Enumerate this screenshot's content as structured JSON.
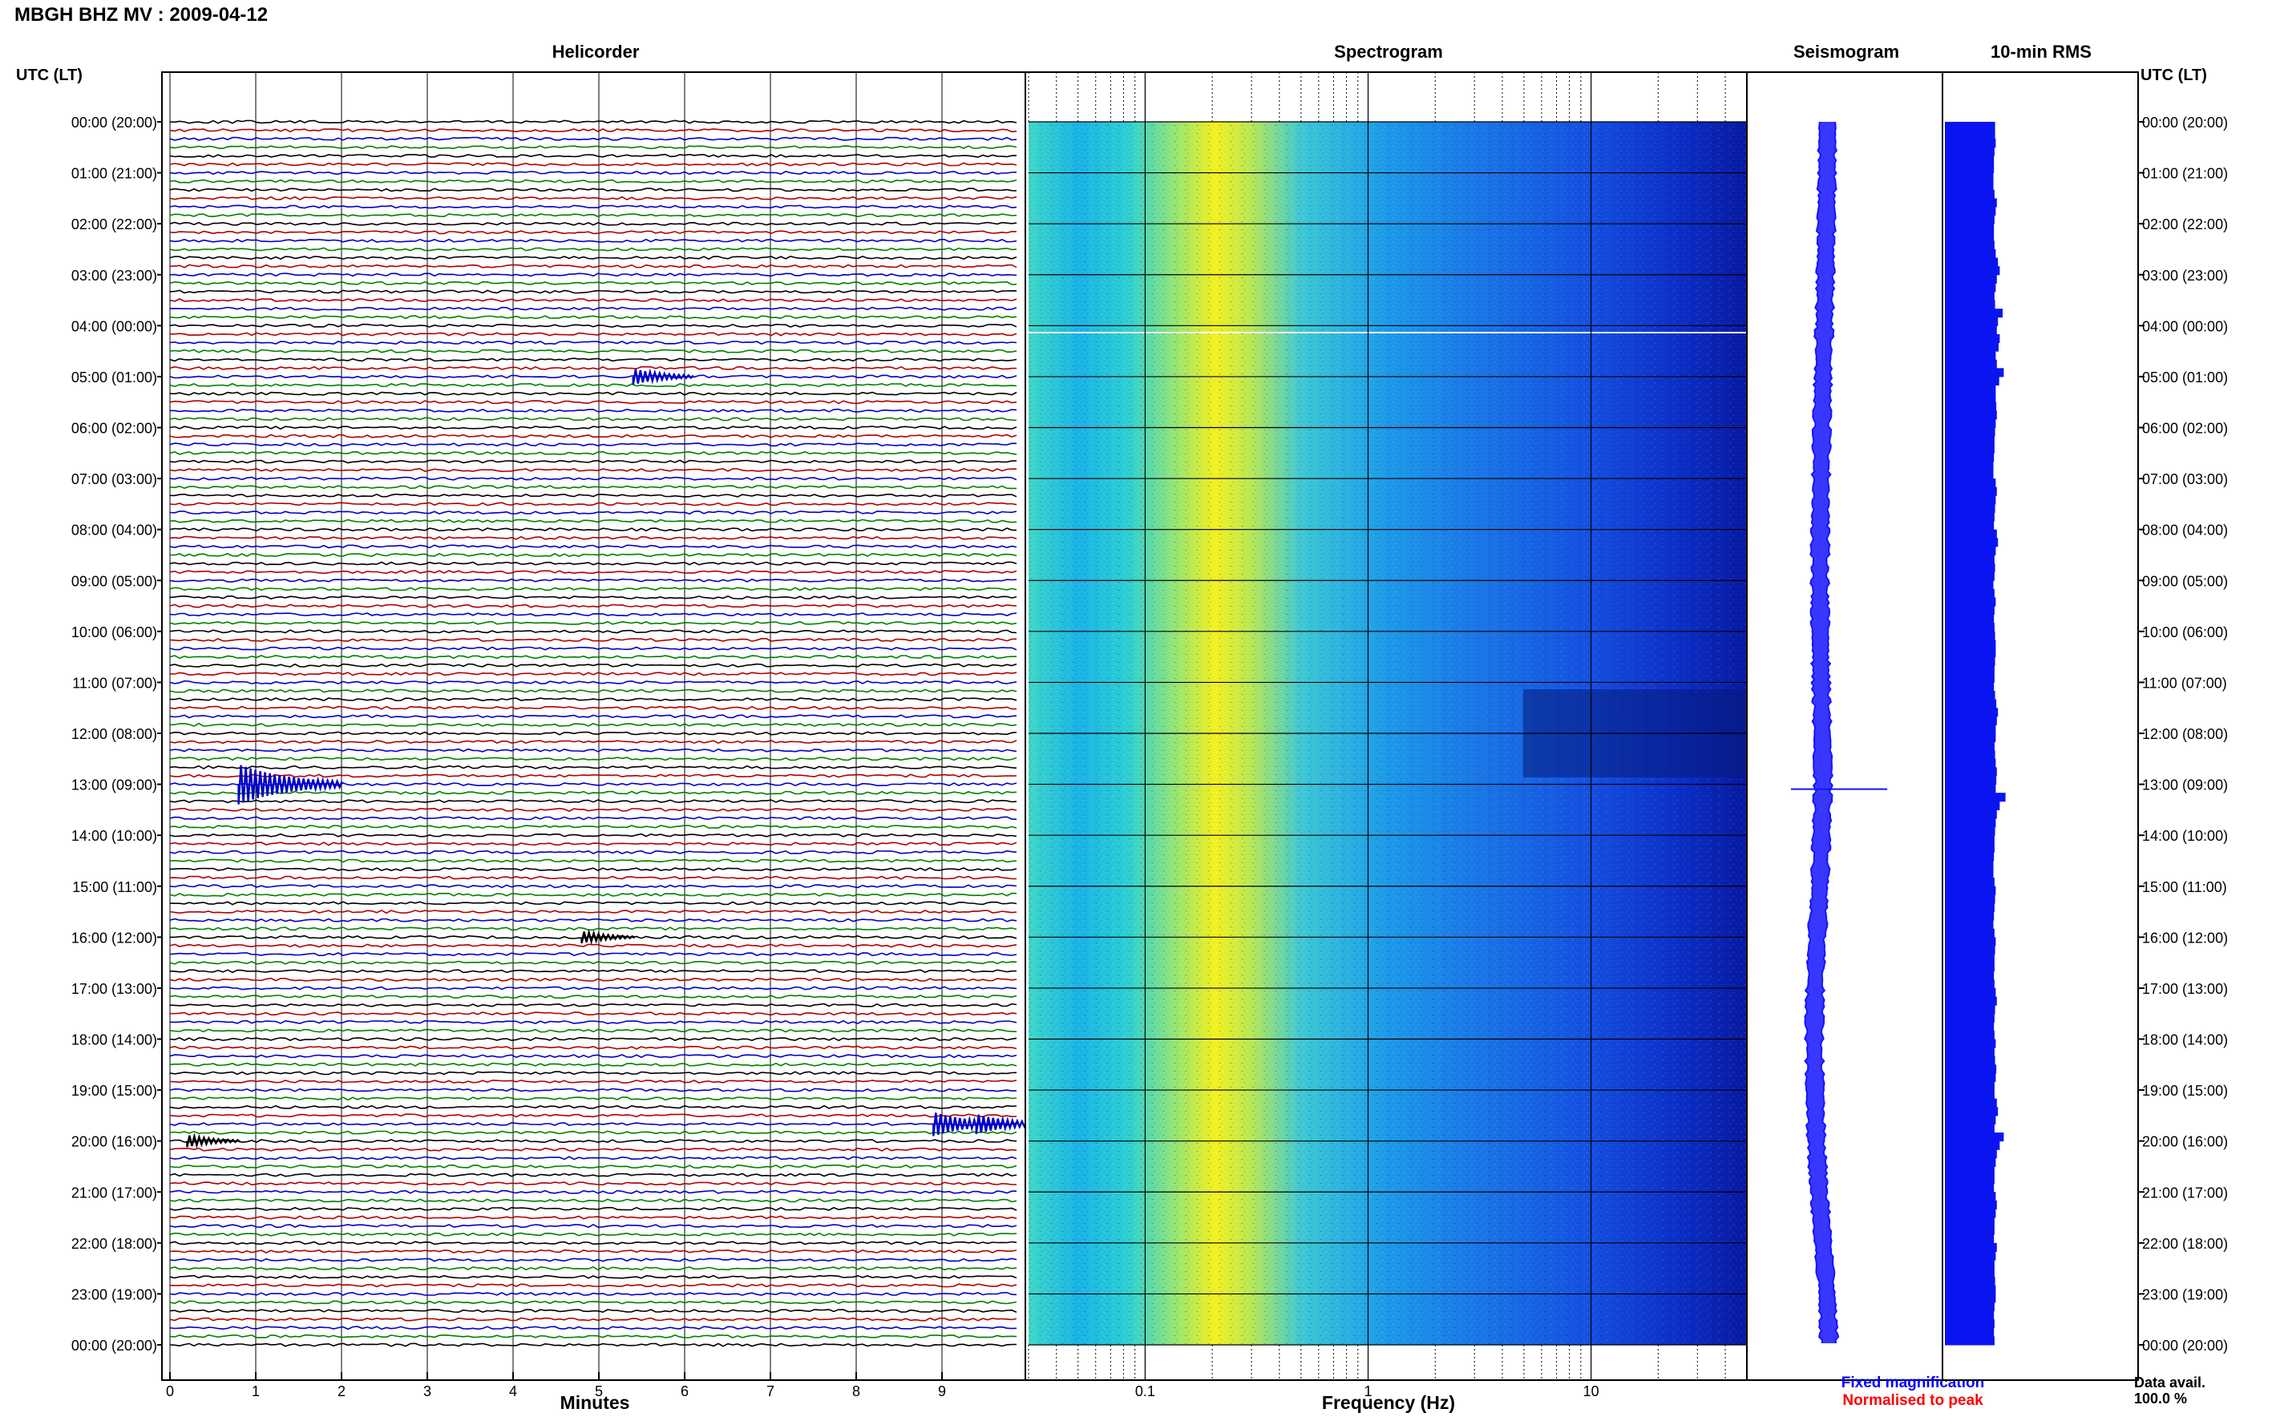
{
  "header": {
    "title": "MBGH BHZ MV : 2009-04-12",
    "utc_left": "UTC (LT)",
    "utc_right": "UTC (LT)"
  },
  "panels": {
    "helicorder": "Helicorder",
    "spectrogram": "Spectrogram",
    "seismogram": "Seismogram",
    "rms": "10-min RMS"
  },
  "time_labels": [
    "00:00 (20:00)",
    "01:00 (21:00)",
    "02:00 (22:00)",
    "03:00 (23:00)",
    "04:00 (00:00)",
    "05:00 (01:00)",
    "06:00 (02:00)",
    "07:00 (03:00)",
    "08:00 (04:00)",
    "09:00 (05:00)",
    "10:00 (06:00)",
    "11:00 (07:00)",
    "12:00 (08:00)",
    "13:00 (09:00)",
    "14:00 (10:00)",
    "15:00 (11:00)",
    "16:00 (12:00)",
    "17:00 (13:00)",
    "18:00 (14:00)",
    "19:00 (15:00)",
    "20:00 (16:00)",
    "21:00 (17:00)",
    "22:00 (18:00)",
    "23:00 (19:00)",
    "00:00 (20:00)"
  ],
  "footer": {
    "minutes_label": "Minutes",
    "frequency_label": "Frequency (Hz)",
    "fixed_mag": "Fixed magnification",
    "normalised": "Normalised to peak",
    "data_avail": "Data avail.",
    "data_avail_value": "100.0 %"
  },
  "colors": {
    "trace_cycle": [
      "#000000",
      "#b00000",
      "#0000c8",
      "#008000"
    ],
    "seismogram": "#1414ff",
    "rms": "#0a14f0",
    "fixed_mag": "#0000ff",
    "normalised": "#ff0000"
  },
  "chart_data": [
    {
      "type": "line",
      "name": "helicorder",
      "title": "Helicorder",
      "xlabel": "Minutes",
      "x_ticks": [
        "0",
        "1",
        "2",
        "3",
        "4",
        "5",
        "6",
        "7",
        "8",
        "9"
      ],
      "xlim": [
        0,
        10
      ],
      "rows": 144,
      "events": [
        {
          "minute": 0.8,
          "row": 78,
          "amp": 5
        },
        {
          "minute": 5.4,
          "row": 30,
          "amp": 2
        },
        {
          "minute": 4.8,
          "row": 96,
          "amp": 1.5
        },
        {
          "minute": 8.9,
          "row": 118,
          "amp": 3
        },
        {
          "minute": 9.4,
          "row": 118,
          "amp": 2.5
        },
        {
          "minute": 0.2,
          "row": 120,
          "amp": 1.5
        }
      ]
    },
    {
      "type": "heatmap",
      "name": "spectrogram",
      "title": "Spectrogram",
      "xlabel": "Frequency (Hz)",
      "x_scale": "log",
      "xlim": [
        0.03,
        50
      ],
      "x_ticks": [
        "0.1",
        "1",
        "10"
      ],
      "y": "hours 0-24 UTC"
    },
    {
      "type": "line",
      "name": "seismogram",
      "title": "Seismogram",
      "x": [
        0,
        1,
        2,
        3,
        4,
        5,
        6,
        7,
        8,
        9,
        10,
        11,
        12,
        13,
        14,
        15,
        16,
        17,
        18,
        19,
        20,
        21,
        22,
        23,
        24
      ],
      "center_offset": [
        0.61,
        0.6,
        0.58,
        0.56,
        0.53,
        0.5,
        0.47,
        0.45,
        0.43,
        0.42,
        0.43,
        0.45,
        0.48,
        0.5,
        0.46,
        0.42,
        0.35,
        0.3,
        0.28,
        0.3,
        0.33,
        0.4,
        0.5,
        0.6,
        0.65
      ]
    },
    {
      "type": "bar",
      "name": "rms",
      "title": "10-min RMS",
      "x": "10-min bins",
      "values": [
        0.87,
        0.87,
        0.88,
        0.86,
        0.85,
        0.85,
        0.84,
        0.84,
        0.86,
        0.9,
        0.88,
        0.86,
        0.85,
        0.85,
        0.86,
        0.88,
        0.92,
        0.95,
        0.9,
        0.88,
        0.86,
        0.87,
        1.0,
        0.92,
        0.9,
        0.95,
        0.93,
        0.88,
        0.9,
        1.02,
        0.94,
        0.88,
        0.88,
        0.89,
        0.9,
        0.88,
        0.87,
        0.86,
        0.86,
        0.85,
        0.84,
        0.84,
        0.88,
        0.9,
        0.88,
        0.87,
        0.86,
        0.85,
        0.9,
        0.92,
        0.88,
        0.86,
        0.87,
        0.86,
        0.84,
        0.86,
        0.88,
        0.86,
        0.85,
        0.86,
        0.87,
        0.88,
        0.88,
        0.87,
        0.86,
        0.86,
        0.85,
        0.87,
        0.89,
        0.92,
        0.9,
        0.88,
        0.88,
        0.86,
        0.87,
        0.88,
        0.9,
        0.89,
        0.88,
        1.05,
        0.95,
        0.9,
        0.88,
        0.87,
        0.86,
        0.86,
        0.85,
        0.84,
        0.84,
        0.86,
        0.88,
        0.87,
        0.86,
        0.85,
        0.84,
        0.86,
        0.88,
        0.87,
        0.86,
        0.86,
        0.85,
        0.86,
        0.88,
        0.9,
        0.87,
        0.86,
        0.85,
        0.86,
        0.88,
        0.86,
        0.87,
        0.89,
        0.88,
        0.86,
        0.86,
        0.9,
        0.92,
        0.88,
        0.86,
        1.02,
        0.95,
        0.9,
        0.88,
        0.86,
        0.86,
        0.85,
        0.88,
        0.9,
        0.88,
        0.86,
        0.86,
        0.85,
        0.9,
        0.88,
        0.86,
        0.86,
        0.87,
        0.88,
        0.88,
        0.86,
        0.85,
        0.86,
        0.85,
        0.86
      ]
    }
  ]
}
